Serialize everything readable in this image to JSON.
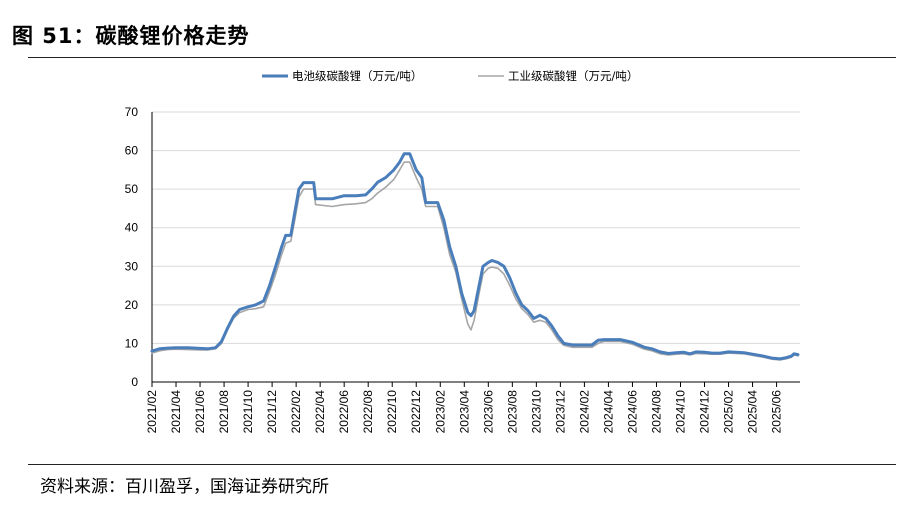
{
  "figure": {
    "title": "图 51：碳酸锂价格走势",
    "source": "资料来源：百川盈孚，国海证券研究所"
  },
  "chart_data": {
    "type": "line",
    "title": "",
    "xlabel": "",
    "ylabel": "",
    "ylim": [
      0,
      70
    ],
    "yticks": [
      0,
      10,
      20,
      30,
      40,
      50,
      60,
      70
    ],
    "x_range": [
      "2021-02",
      "2025-07"
    ],
    "x_tick_labels": [
      "2021/02",
      "2021/04",
      "2021/06",
      "2021/08",
      "2021/10",
      "2021/12",
      "2022/02",
      "2022/04",
      "2022/06",
      "2022/08",
      "2022/10",
      "2022/12",
      "2023/02",
      "2023/04",
      "2023/06",
      "2023/08",
      "2023/10",
      "2023/12",
      "2024/02",
      "2024/04",
      "2024/06",
      "2024/08",
      "2024/10",
      "2024/12",
      "2025/02",
      "2025/04",
      "2025/06"
    ],
    "grid": "horizontal",
    "legend_position": "top",
    "series": [
      {
        "name": "电池级碳酸锂（万元/吨）",
        "color": "#4a7ebb",
        "points": [
          [
            "2021-02-01",
            8.0
          ],
          [
            "2021-02-20",
            8.6
          ],
          [
            "2021-03-10",
            8.8
          ],
          [
            "2021-04-01",
            8.9
          ],
          [
            "2021-05-01",
            8.9
          ],
          [
            "2021-06-01",
            8.7
          ],
          [
            "2021-06-20",
            8.6
          ],
          [
            "2021-07-10",
            8.9
          ],
          [
            "2021-07-25",
            10.5
          ],
          [
            "2021-08-10",
            14.0
          ],
          [
            "2021-08-25",
            17.0
          ],
          [
            "2021-09-10",
            18.8
          ],
          [
            "2021-10-01",
            19.5
          ],
          [
            "2021-10-20",
            20.0
          ],
          [
            "2021-11-10",
            21.0
          ],
          [
            "2021-11-25",
            25.0
          ],
          [
            "2021-12-10",
            30.0
          ],
          [
            "2021-12-25",
            35.0
          ],
          [
            "2022-01-05",
            38.0
          ],
          [
            "2022-01-18",
            38.0
          ],
          [
            "2022-01-28",
            44.0
          ],
          [
            "2022-02-08",
            50.0
          ],
          [
            "2022-02-20",
            51.7
          ],
          [
            "2022-03-15",
            51.7
          ],
          [
            "2022-03-20",
            47.5
          ],
          [
            "2022-05-01",
            47.5
          ],
          [
            "2022-06-01",
            48.3
          ],
          [
            "2022-07-01",
            48.3
          ],
          [
            "2022-07-25",
            48.5
          ],
          [
            "2022-08-10",
            50.0
          ],
          [
            "2022-08-25",
            51.8
          ],
          [
            "2022-09-15",
            53.0
          ],
          [
            "2022-10-05",
            55.0
          ],
          [
            "2022-10-20",
            57.0
          ],
          [
            "2022-11-01",
            59.2
          ],
          [
            "2022-11-15",
            59.2
          ],
          [
            "2022-12-01",
            55.0
          ],
          [
            "2022-12-15",
            53.0
          ],
          [
            "2022-12-25",
            46.5
          ],
          [
            "2023-01-25",
            46.5
          ],
          [
            "2023-02-10",
            42.0
          ],
          [
            "2023-02-25",
            35.0
          ],
          [
            "2023-03-10",
            30.0
          ],
          [
            "2023-03-25",
            23.0
          ],
          [
            "2023-04-10",
            18.0
          ],
          [
            "2023-04-18",
            17.2
          ],
          [
            "2023-04-26",
            18.5
          ],
          [
            "2023-05-08",
            25.0
          ],
          [
            "2023-05-18",
            30.0
          ],
          [
            "2023-06-01",
            31.0
          ],
          [
            "2023-06-10",
            31.5
          ],
          [
            "2023-06-25",
            31.0
          ],
          [
            "2023-07-10",
            30.0
          ],
          [
            "2023-07-25",
            27.0
          ],
          [
            "2023-08-10",
            23.0
          ],
          [
            "2023-08-25",
            20.0
          ],
          [
            "2023-09-10",
            18.5
          ],
          [
            "2023-09-25",
            16.5
          ],
          [
            "2023-10-10",
            17.3
          ],
          [
            "2023-10-25",
            16.5
          ],
          [
            "2023-11-10",
            14.5
          ],
          [
            "2023-11-25",
            12.0
          ],
          [
            "2023-12-10",
            10.0
          ],
          [
            "2024-01-01",
            9.6
          ],
          [
            "2024-02-01",
            9.6
          ],
          [
            "2024-02-20",
            9.6
          ],
          [
            "2024-03-05",
            10.8
          ],
          [
            "2024-03-20",
            11.0
          ],
          [
            "2024-04-10",
            11.0
          ],
          [
            "2024-05-01",
            11.0
          ],
          [
            "2024-06-01",
            10.3
          ],
          [
            "2024-07-01",
            9.0
          ],
          [
            "2024-07-20",
            8.6
          ],
          [
            "2024-08-10",
            7.8
          ],
          [
            "2024-09-01",
            7.4
          ],
          [
            "2024-09-20",
            7.6
          ],
          [
            "2024-10-10",
            7.7
          ],
          [
            "2024-10-25",
            7.3
          ],
          [
            "2024-11-10",
            7.8
          ],
          [
            "2024-12-01",
            7.7
          ],
          [
            "2024-12-20",
            7.5
          ],
          [
            "2025-01-10",
            7.5
          ],
          [
            "2025-02-01",
            7.8
          ],
          [
            "2025-02-20",
            7.7
          ],
          [
            "2025-03-10",
            7.6
          ],
          [
            "2025-04-01",
            7.2
          ],
          [
            "2025-04-25",
            6.8
          ],
          [
            "2025-05-20",
            6.2
          ],
          [
            "2025-06-10",
            6.0
          ],
          [
            "2025-06-25",
            6.3
          ],
          [
            "2025-07-08",
            6.7
          ],
          [
            "2025-07-15",
            7.3
          ],
          [
            "2025-07-25",
            7.1
          ]
        ]
      },
      {
        "name": "工业级碳酸锂（万元/吨）",
        "color": "#a6a6a6",
        "points": [
          [
            "2021-02-01",
            7.5
          ],
          [
            "2021-02-20",
            8.1
          ],
          [
            "2021-03-10",
            8.4
          ],
          [
            "2021-04-01",
            8.5
          ],
          [
            "2021-05-01",
            8.4
          ],
          [
            "2021-06-01",
            8.3
          ],
          [
            "2021-06-20",
            8.3
          ],
          [
            "2021-07-10",
            8.6
          ],
          [
            "2021-07-25",
            10.0
          ],
          [
            "2021-08-10",
            13.5
          ],
          [
            "2021-08-25",
            16.5
          ],
          [
            "2021-09-10",
            18.0
          ],
          [
            "2021-10-01",
            18.8
          ],
          [
            "2021-10-20",
            19.0
          ],
          [
            "2021-11-10",
            19.5
          ],
          [
            "2021-11-25",
            23.5
          ],
          [
            "2021-12-10",
            28.0
          ],
          [
            "2021-12-25",
            33.0
          ],
          [
            "2022-01-05",
            36.0
          ],
          [
            "2022-01-18",
            36.5
          ],
          [
            "2022-01-28",
            42.0
          ],
          [
            "2022-02-08",
            48.0
          ],
          [
            "2022-02-20",
            50.0
          ],
          [
            "2022-03-15",
            50.0
          ],
          [
            "2022-03-20",
            46.0
          ],
          [
            "2022-05-01",
            45.5
          ],
          [
            "2022-06-01",
            46.0
          ],
          [
            "2022-07-01",
            46.2
          ],
          [
            "2022-07-25",
            46.5
          ],
          [
            "2022-08-10",
            47.5
          ],
          [
            "2022-08-25",
            49.0
          ],
          [
            "2022-09-15",
            50.5
          ],
          [
            "2022-10-05",
            52.5
          ],
          [
            "2022-10-20",
            55.0
          ],
          [
            "2022-11-01",
            57.0
          ],
          [
            "2022-11-15",
            57.0
          ],
          [
            "2022-12-01",
            53.0
          ],
          [
            "2022-12-15",
            50.0
          ],
          [
            "2022-12-25",
            45.5
          ],
          [
            "2023-01-25",
            45.5
          ],
          [
            "2023-02-10",
            40.0
          ],
          [
            "2023-02-25",
            33.0
          ],
          [
            "2023-03-10",
            28.5
          ],
          [
            "2023-03-25",
            21.5
          ],
          [
            "2023-04-10",
            15.0
          ],
          [
            "2023-04-18",
            13.5
          ],
          [
            "2023-04-26",
            16.0
          ],
          [
            "2023-05-08",
            23.0
          ],
          [
            "2023-05-18",
            28.0
          ],
          [
            "2023-06-01",
            29.5
          ],
          [
            "2023-06-10",
            29.8
          ],
          [
            "2023-06-25",
            29.5
          ],
          [
            "2023-07-10",
            28.0
          ],
          [
            "2023-07-25",
            25.0
          ],
          [
            "2023-08-10",
            21.5
          ],
          [
            "2023-08-25",
            19.0
          ],
          [
            "2023-09-10",
            17.5
          ],
          [
            "2023-09-25",
            15.5
          ],
          [
            "2023-10-10",
            16.0
          ],
          [
            "2023-10-25",
            15.5
          ],
          [
            "2023-11-10",
            13.5
          ],
          [
            "2023-11-25",
            11.0
          ],
          [
            "2023-12-10",
            9.5
          ],
          [
            "2024-01-01",
            9.0
          ],
          [
            "2024-02-01",
            9.0
          ],
          [
            "2024-02-20",
            9.0
          ],
          [
            "2024-03-05",
            10.0
          ],
          [
            "2024-03-20",
            10.5
          ],
          [
            "2024-04-10",
            10.5
          ],
          [
            "2024-05-01",
            10.5
          ],
          [
            "2024-06-01",
            9.8
          ],
          [
            "2024-07-01",
            8.5
          ],
          [
            "2024-07-20",
            8.1
          ],
          [
            "2024-08-10",
            7.3
          ],
          [
            "2024-09-01",
            7.0
          ],
          [
            "2024-09-20",
            7.2
          ],
          [
            "2024-10-10",
            7.3
          ],
          [
            "2024-10-25",
            7.0
          ],
          [
            "2024-11-10",
            7.4
          ],
          [
            "2024-12-01",
            7.3
          ],
          [
            "2024-12-20",
            7.2
          ],
          [
            "2025-01-10",
            7.2
          ],
          [
            "2025-02-01",
            7.5
          ],
          [
            "2025-02-20",
            7.4
          ],
          [
            "2025-03-10",
            7.3
          ],
          [
            "2025-04-01",
            6.9
          ],
          [
            "2025-04-25",
            6.5
          ],
          [
            "2025-05-20",
            5.9
          ],
          [
            "2025-06-10",
            5.7
          ],
          [
            "2025-06-25",
            6.0
          ],
          [
            "2025-07-08",
            6.4
          ],
          [
            "2025-07-15",
            7.0
          ],
          [
            "2025-07-25",
            6.8
          ]
        ]
      }
    ]
  }
}
